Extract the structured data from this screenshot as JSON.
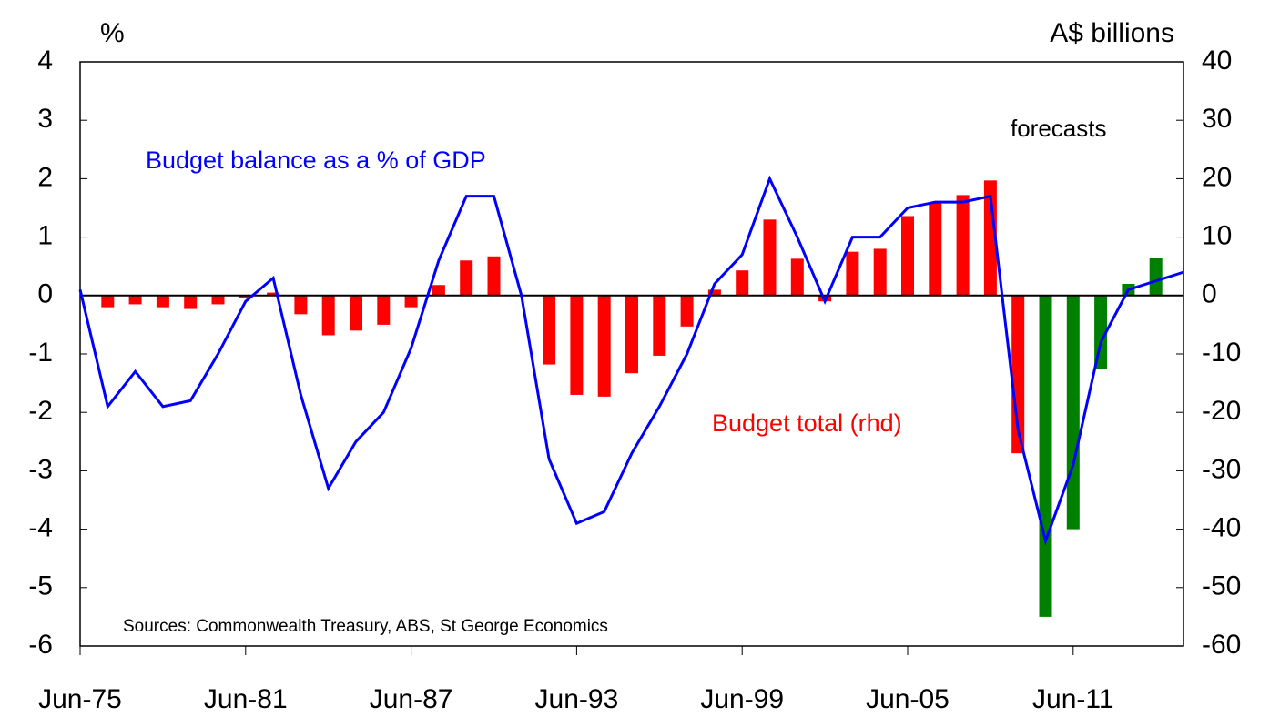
{
  "chart_data": {
    "type": "bar-line",
    "y_label": "%",
    "y2_label": "A$ billions",
    "annotations": [
      "forecasts",
      "Sources: Commonwealth Treasury,  ABS, St George Economics"
    ],
    "xlim": [
      1975,
      2015
    ],
    "xticks": [
      {
        "value": 1975,
        "label": "Jun-75"
      },
      {
        "value": 1981,
        "label": "Jun-81"
      },
      {
        "value": 1987,
        "label": "Jun-87"
      },
      {
        "value": 1993,
        "label": "Jun-93"
      },
      {
        "value": 1999,
        "label": "Jun-99"
      },
      {
        "value": 2005,
        "label": "Jun-05"
      },
      {
        "value": 2011,
        "label": "Jun-11"
      }
    ],
    "ylim": [
      -6,
      4
    ],
    "yticks": [
      -6,
      -5,
      -4,
      -3,
      -2,
      -1,
      0,
      1,
      2,
      3,
      4
    ],
    "y2lim": [
      -60,
      40
    ],
    "y2ticks": [
      -60,
      -50,
      -40,
      -30,
      -20,
      -10,
      0,
      10,
      20,
      30,
      40
    ],
    "series": [
      {
        "name": "Budget total (rhd)",
        "type": "bar",
        "axis": "y2",
        "color": "#ff0000",
        "x": [
          1976,
          1977,
          1978,
          1979,
          1980,
          1981,
          1982,
          1983,
          1984,
          1985,
          1986,
          1987,
          1988,
          1989,
          1990,
          1991,
          1992,
          1993,
          1994,
          1995,
          1996,
          1997,
          1998,
          1999,
          2000,
          2001,
          2002,
          2003,
          2004,
          2005,
          2006,
          2007,
          2008,
          2009,
          2010,
          2011,
          2012,
          2013,
          2014
        ],
        "values": [
          -2,
          -1.5,
          -2,
          -2.3,
          -1.5,
          -0.5,
          0.5,
          -3.2,
          -6.8,
          -6,
          -5,
          -2,
          1.8,
          6,
          6.7,
          0,
          -11.8,
          -17,
          -17.3,
          -13.3,
          -10.3,
          -5.3,
          1,
          4.3,
          13,
          6.3,
          -1,
          7.5,
          8,
          13.6,
          15.8,
          17.2,
          19.7,
          -27,
          -55,
          -40,
          -12.5,
          2,
          6.5
        ],
        "colors": [
          "#ff0000",
          "#ff0000",
          "#ff0000",
          "#ff0000",
          "#ff0000",
          "#ff0000",
          "#ff0000",
          "#ff0000",
          "#ff0000",
          "#ff0000",
          "#ff0000",
          "#ff0000",
          "#ff0000",
          "#ff0000",
          "#ff0000",
          "#ff0000",
          "#ff0000",
          "#ff0000",
          "#ff0000",
          "#ff0000",
          "#ff0000",
          "#ff0000",
          "#ff0000",
          "#ff0000",
          "#ff0000",
          "#ff0000",
          "#ff0000",
          "#ff0000",
          "#ff0000",
          "#ff0000",
          "#ff0000",
          "#ff0000",
          "#ff0000",
          "#ff0000",
          "#008000",
          "#008000",
          "#008000",
          "#008000",
          "#008000"
        ]
      },
      {
        "name": "Budget balance as a % of GDP",
        "type": "line",
        "color": "#0000ff",
        "x": [
          1975,
          1976,
          1977,
          1978,
          1979,
          1980,
          1981,
          1982,
          1983,
          1984,
          1985,
          1986,
          1987,
          1988,
          1989,
          1990,
          1991,
          1992,
          1993,
          1994,
          1995,
          1996,
          1997,
          1998,
          1999,
          2000,
          2001,
          2002,
          2003,
          2004,
          2005,
          2006,
          2007,
          2008,
          2009,
          2010,
          2011,
          2012,
          2013,
          2014,
          2015
        ],
        "values": [
          0.1,
          -1.9,
          -1.3,
          -1.9,
          -1.8,
          -1.0,
          -0.1,
          0.3,
          -1.7,
          -3.3,
          -2.5,
          -2.0,
          -0.9,
          0.6,
          1.7,
          1.7,
          0.0,
          -2.8,
          -3.9,
          -3.7,
          -2.7,
          -1.9,
          -1.0,
          0.2,
          0.7,
          2.0,
          1.0,
          -0.1,
          1.0,
          1.0,
          1.5,
          1.6,
          1.6,
          1.7,
          -2.3,
          -4.2,
          -2.9,
          -0.8,
          0.1,
          0.25,
          0.4
        ]
      }
    ]
  }
}
